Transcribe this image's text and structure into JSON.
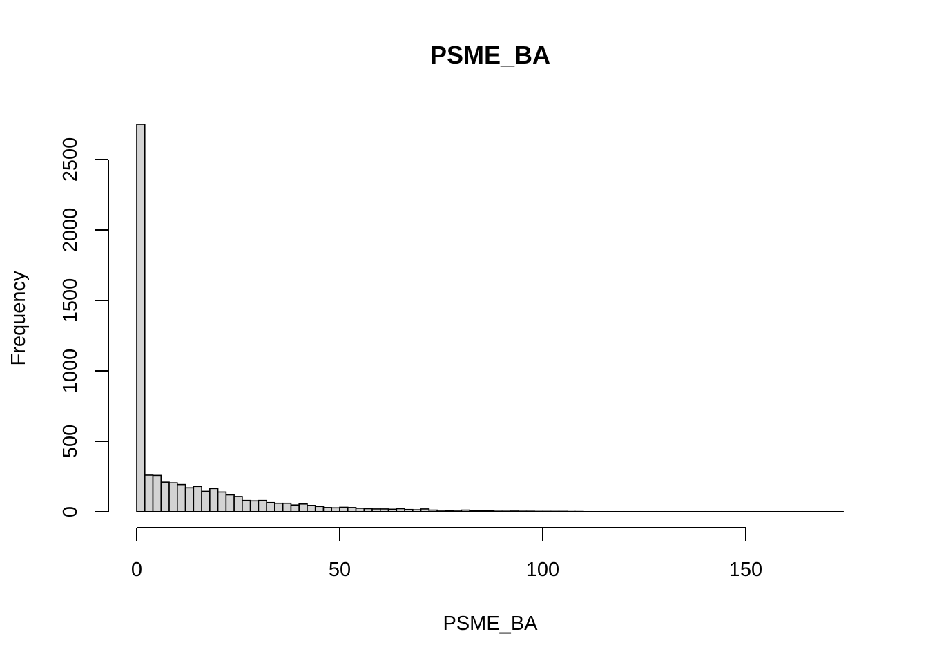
{
  "chart_data": {
    "type": "bar",
    "title": "PSME_BA",
    "xlabel": "PSME_BA",
    "ylabel": "Frequency",
    "bin_width": 2,
    "bin_start": 0,
    "xlim": [
      0,
      174
    ],
    "ylim": [
      0,
      2750
    ],
    "x_ticks": [
      0,
      50,
      100,
      150
    ],
    "y_ticks": [
      0,
      500,
      1000,
      1500,
      2000,
      2500
    ],
    "bar_fill": "#d3d3d3",
    "bar_stroke": "#000000",
    "values": [
      2750,
      260,
      258,
      210,
      205,
      193,
      170,
      180,
      145,
      165,
      140,
      120,
      108,
      80,
      77,
      80,
      65,
      60,
      60,
      48,
      55,
      45,
      38,
      30,
      28,
      32,
      30,
      25,
      22,
      20,
      20,
      18,
      22,
      16,
      14,
      20,
      12,
      10,
      8,
      10,
      12,
      8,
      6,
      7,
      4,
      4,
      5,
      4,
      4,
      3,
      3,
      3,
      3,
      2,
      2,
      1,
      1,
      1,
      1,
      1,
      1,
      1,
      1,
      1,
      1,
      1,
      1,
      1,
      1,
      1,
      1,
      1,
      1,
      1,
      1,
      1,
      1,
      1,
      1,
      1,
      1,
      1,
      1,
      1,
      1,
      1,
      1
    ]
  }
}
